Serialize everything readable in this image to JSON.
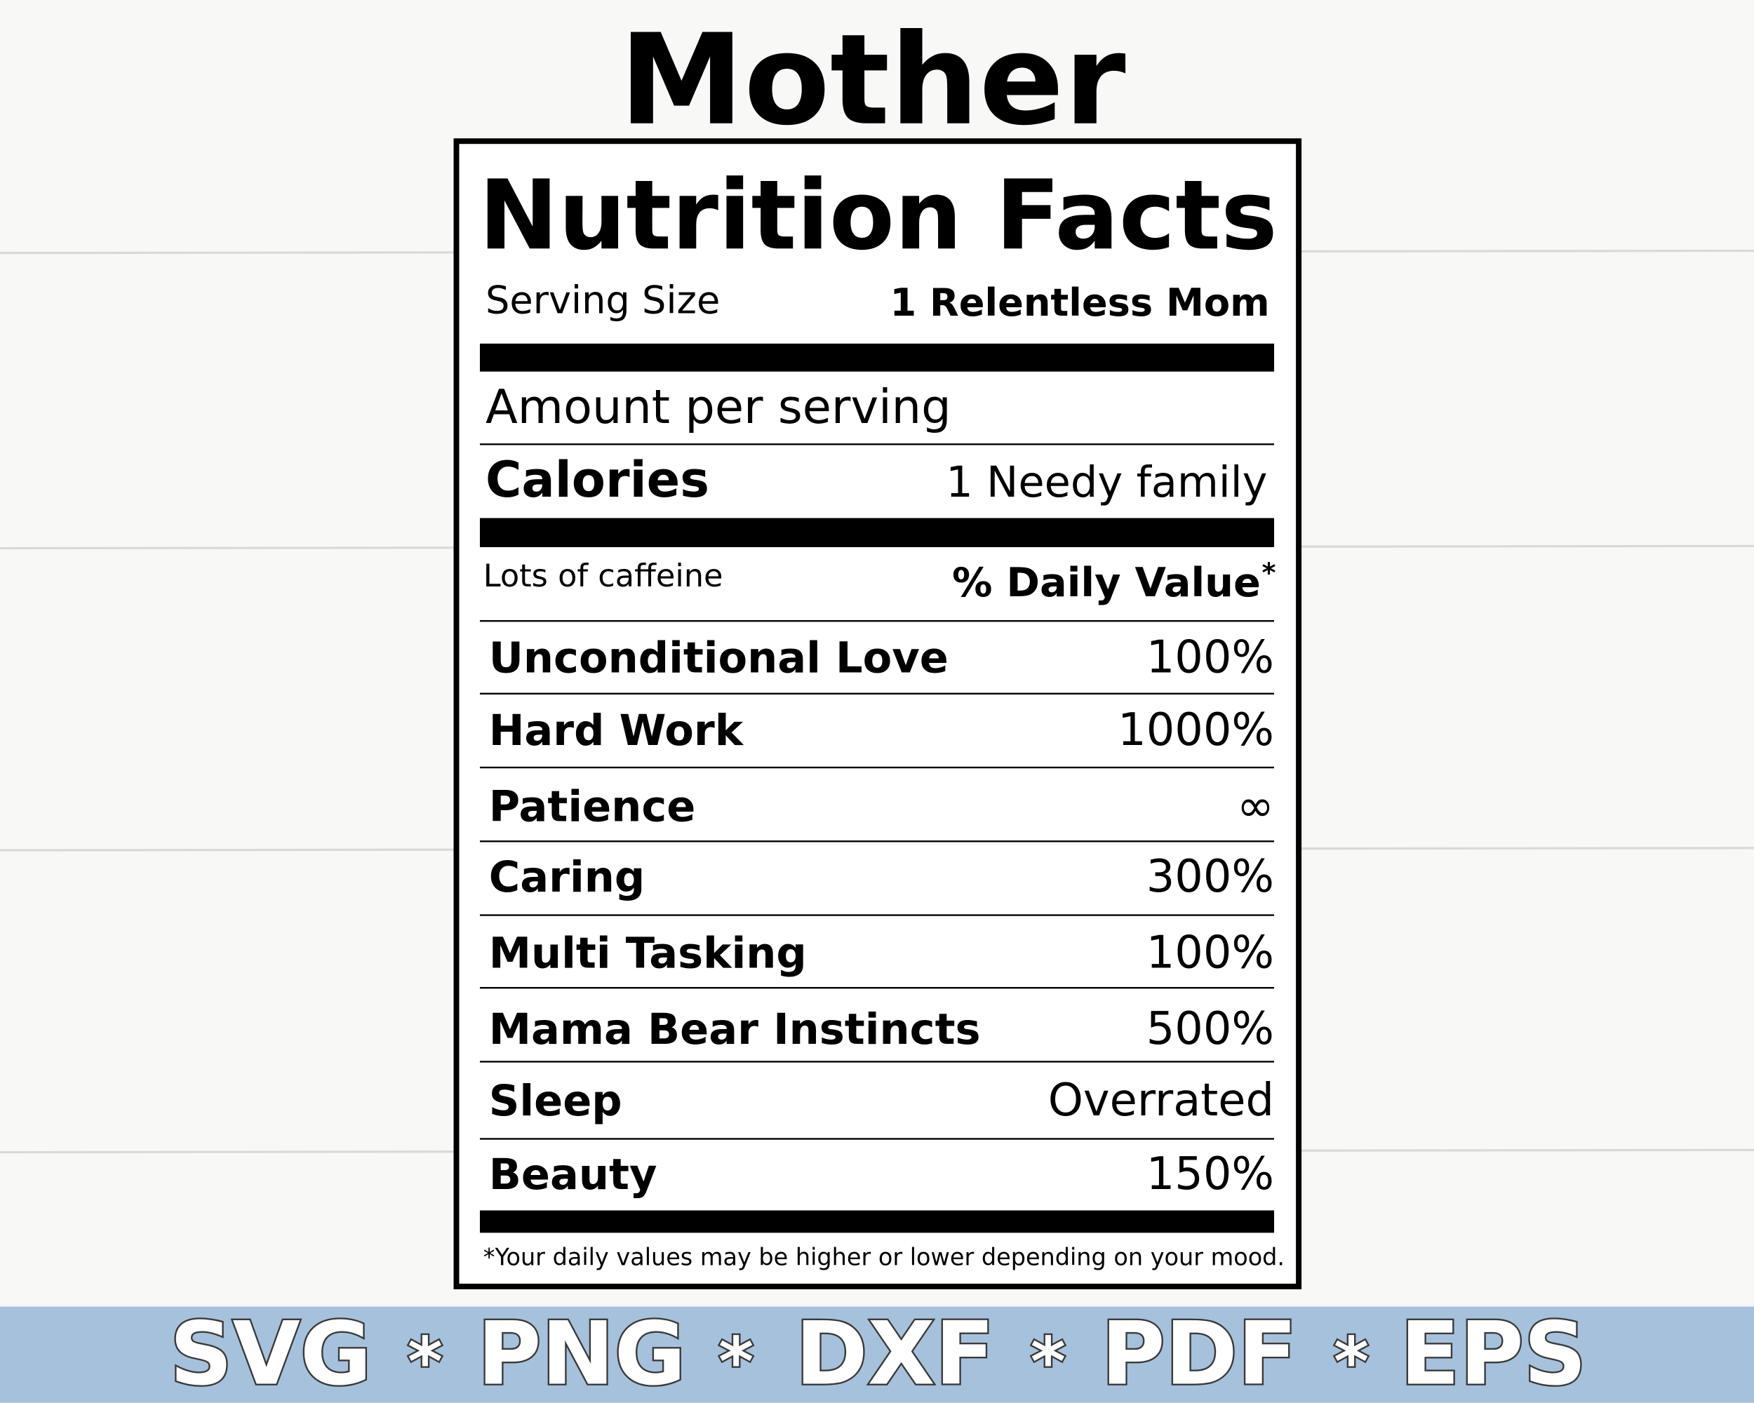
{
  "title": "Mother",
  "label": {
    "heading": "Nutrition Facts",
    "serving_size": {
      "label": "Serving Size",
      "value": "1 Relentless Mom"
    },
    "amount_per_serving": "Amount per serving",
    "calories": {
      "label": "Calories",
      "value": "1 Needy family"
    },
    "note": "Lots of caffeine",
    "daily_value_header": "% Daily Value",
    "daily_value_mark": "*",
    "rows": [
      {
        "name": "Unconditional Love",
        "value": "100%"
      },
      {
        "name": "Hard Work",
        "value": "1000%"
      },
      {
        "name": "Patience",
        "value": "∞"
      },
      {
        "name": "Caring",
        "value": "300%"
      },
      {
        "name": "Multi Tasking",
        "value": "100%"
      },
      {
        "name": "Mama Bear Instincts",
        "value": "500%"
      },
      {
        "name": "Sleep",
        "value": "Overrated"
      },
      {
        "name": "Beauty",
        "value": "150%"
      }
    ],
    "footnote": "*Your daily values may be higher or lower depending on your mood."
  },
  "banner": {
    "formats": [
      "SVG",
      "PNG",
      "DXF",
      "PDF",
      "EPS"
    ],
    "separator": "*"
  }
}
